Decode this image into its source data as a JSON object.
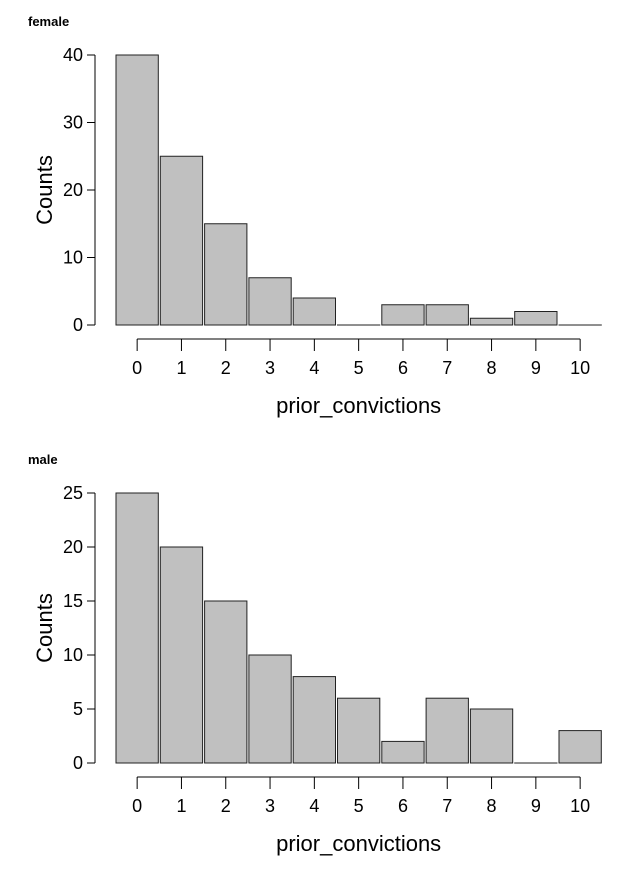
{
  "chart_data": [
    {
      "type": "bar",
      "title": "female",
      "xlabel": "prior_convictions",
      "ylabel": "Counts",
      "categories": [
        "0",
        "1",
        "2",
        "3",
        "4",
        "5",
        "6",
        "7",
        "8",
        "9",
        "10"
      ],
      "values": [
        40,
        25,
        15,
        7,
        4,
        0,
        3,
        3,
        1,
        2,
        0
      ],
      "ylim": [
        0,
        40
      ],
      "yticks": [
        0,
        10,
        20,
        30,
        40
      ],
      "bar_color": "#c0c0c0",
      "grid": false
    },
    {
      "type": "bar",
      "title": "male",
      "xlabel": "prior_convictions",
      "ylabel": "Counts",
      "categories": [
        "0",
        "1",
        "2",
        "3",
        "4",
        "5",
        "6",
        "7",
        "8",
        "9",
        "10"
      ],
      "values": [
        25,
        20,
        15,
        10,
        8,
        6,
        2,
        6,
        5,
        0,
        3
      ],
      "ylim": [
        0,
        25
      ],
      "yticks": [
        0,
        5,
        10,
        15,
        20,
        25
      ],
      "bar_color": "#c0c0c0",
      "grid": false
    }
  ]
}
